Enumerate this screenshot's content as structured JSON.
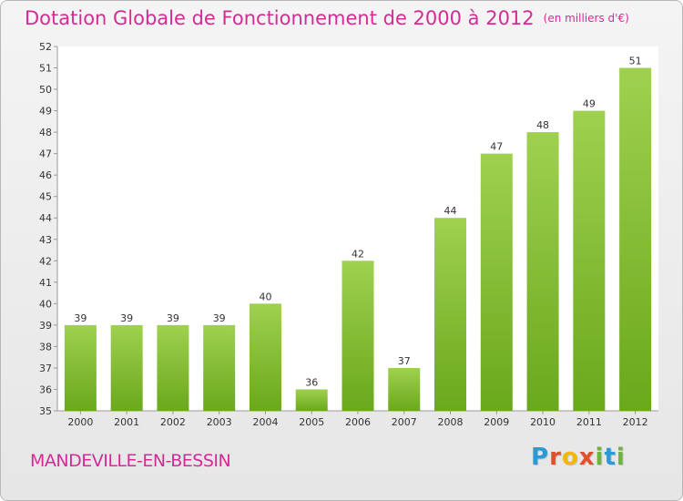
{
  "title": "Dotation Globale de Fonctionnement de 2000 à 2012",
  "unit_label": "(en milliers d'€)",
  "place_name": "MANDEVILLE-EN-BESSIN",
  "logo": {
    "letters": [
      "P",
      "r",
      "o",
      "x",
      "i",
      "t",
      "i"
    ],
    "colors": [
      "#2a9ad6",
      "#e0502b",
      "#f2b705",
      "#e0502b",
      "#6db33f",
      "#2a9ad6",
      "#6db33f"
    ]
  },
  "colors": {
    "accent": "#d42c96",
    "bar_top": "#9fd14f",
    "bar_bottom": "#6aa81c",
    "axis": "#999999",
    "grid": "#dddddd",
    "text": "#333333"
  },
  "chart_data": {
    "type": "bar",
    "title": "Dotation Globale de Fonctionnement de 2000 à 2012",
    "subtitle": "(en milliers d'€)",
    "categories": [
      "2000",
      "2001",
      "2002",
      "2003",
      "2004",
      "2005",
      "2006",
      "2007",
      "2008",
      "2009",
      "2010",
      "2011",
      "2012"
    ],
    "values": [
      39,
      39,
      39,
      39,
      40,
      36,
      42,
      37,
      44,
      47,
      48,
      49,
      51
    ],
    "ylim": [
      35,
      52
    ],
    "yticks": [
      35,
      36,
      37,
      38,
      39,
      40,
      41,
      42,
      43,
      44,
      45,
      46,
      47,
      48,
      49,
      50,
      51,
      52
    ],
    "grid": false,
    "legend": "none"
  }
}
